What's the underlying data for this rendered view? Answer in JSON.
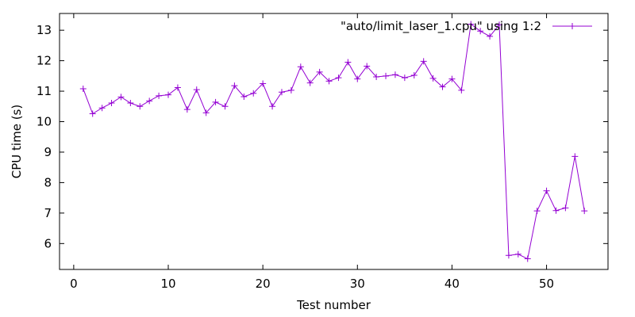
{
  "chart_data": {
    "type": "line",
    "title": "",
    "xlabel": "Test number",
    "ylabel": "CPU time (s)",
    "xlim": [
      -1.5,
      56.5
    ],
    "ylim": [
      5.15,
      13.55
    ],
    "xticks": [
      0,
      10,
      20,
      30,
      40,
      50
    ],
    "yticks": [
      6,
      7,
      8,
      9,
      10,
      11,
      12,
      13
    ],
    "grid": false,
    "legend_position": "top-right",
    "series": [
      {
        "name": "\"auto/limit_laser_1.cpu\" using 1:2",
        "color": "#9400d3",
        "marker": "plus",
        "x": [
          1,
          2,
          3,
          4,
          5,
          6,
          7,
          8,
          9,
          10,
          11,
          12,
          13,
          14,
          15,
          16,
          17,
          18,
          19,
          20,
          21,
          22,
          23,
          24,
          25,
          26,
          27,
          28,
          29,
          30,
          31,
          32,
          33,
          34,
          35,
          36,
          37,
          38,
          39,
          40,
          41,
          42,
          43,
          44,
          45,
          46,
          47,
          48,
          49,
          50,
          51,
          52,
          53,
          54
        ],
        "y": [
          11.08,
          10.26,
          10.45,
          10.61,
          10.81,
          10.61,
          10.5,
          10.68,
          10.85,
          10.88,
          11.12,
          10.4,
          11.05,
          10.29,
          10.64,
          10.5,
          11.18,
          10.82,
          10.93,
          11.25,
          10.5,
          10.97,
          11.03,
          11.8,
          11.27,
          11.63,
          11.33,
          11.44,
          11.95,
          11.4,
          11.82,
          11.47,
          11.5,
          11.54,
          11.44,
          11.52,
          11.98,
          11.42,
          11.14,
          11.4,
          11.03,
          13.2,
          12.97,
          12.8,
          13.18,
          5.61,
          5.65,
          5.5,
          7.07,
          7.73,
          7.08,
          7.17,
          8.86,
          7.07
        ]
      }
    ]
  }
}
